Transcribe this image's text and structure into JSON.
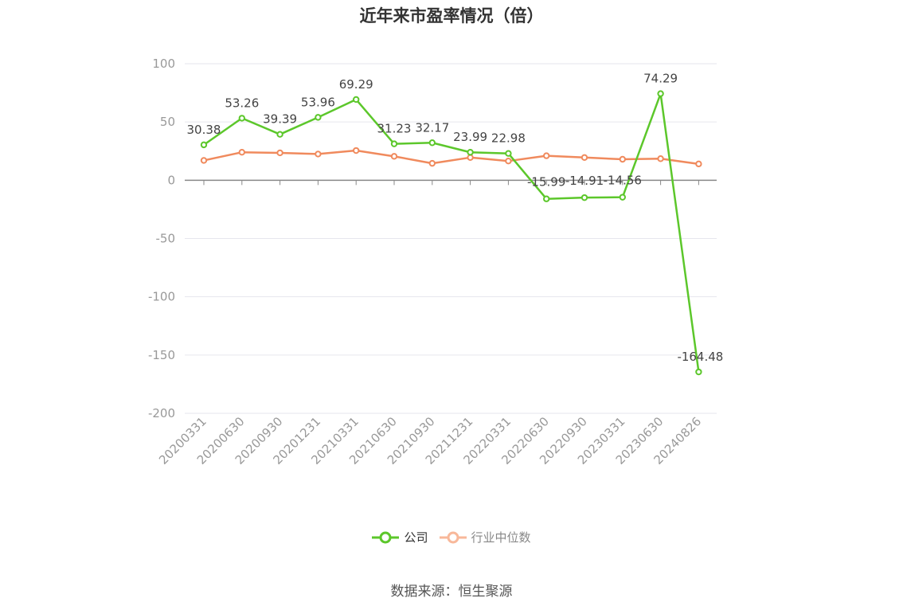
{
  "title": "近年来市盈率情况（倍）",
  "source": "数据来源：恒生聚源",
  "colors": {
    "company": "#5cc72b",
    "industry": "#f08a5d",
    "industry_legend": "#f8b89a",
    "grid": "#e6e6ee",
    "axis": "#888888",
    "tick_label": "#999999",
    "data_label": "#444444"
  },
  "legend": [
    {
      "name": "公司",
      "icon": "circle-line-icon"
    },
    {
      "name": "行业中位数",
      "icon": "circle-line-icon"
    }
  ],
  "chart_data": {
    "type": "line",
    "title": "近年来市盈率情况（倍）",
    "categories": [
      "20200331",
      "20200630",
      "20200930",
      "20201231",
      "20210331",
      "20210630",
      "20210930",
      "20211231",
      "20220331",
      "20220630",
      "20220930",
      "20230331",
      "20230630",
      "20240826"
    ],
    "series": [
      {
        "name": "公司",
        "values": [
          30.38,
          53.26,
          39.39,
          53.96,
          69.29,
          31.23,
          32.17,
          23.99,
          22.98,
          -15.99,
          -14.91,
          -14.56,
          74.29,
          -164.48
        ],
        "labels": [
          "30.38",
          "53.26",
          "39.39",
          "53.96",
          "69.29",
          "31.23",
          "32.17",
          "23.99",
          "22.98",
          "-15.99",
          "-14.91",
          "-14.56",
          "74.29",
          "-164.48"
        ]
      },
      {
        "name": "行业中位数",
        "values": [
          17,
          24,
          23.5,
          22.5,
          25.5,
          20.5,
          14.5,
          19.5,
          16.5,
          21,
          19.5,
          18,
          18.5,
          14
        ]
      }
    ],
    "yticks": [
      100,
      50,
      0,
      -50,
      -100,
      -150,
      -200
    ],
    "ylim": [
      -200,
      100
    ],
    "grid": true,
    "legend_position": "bottom"
  }
}
